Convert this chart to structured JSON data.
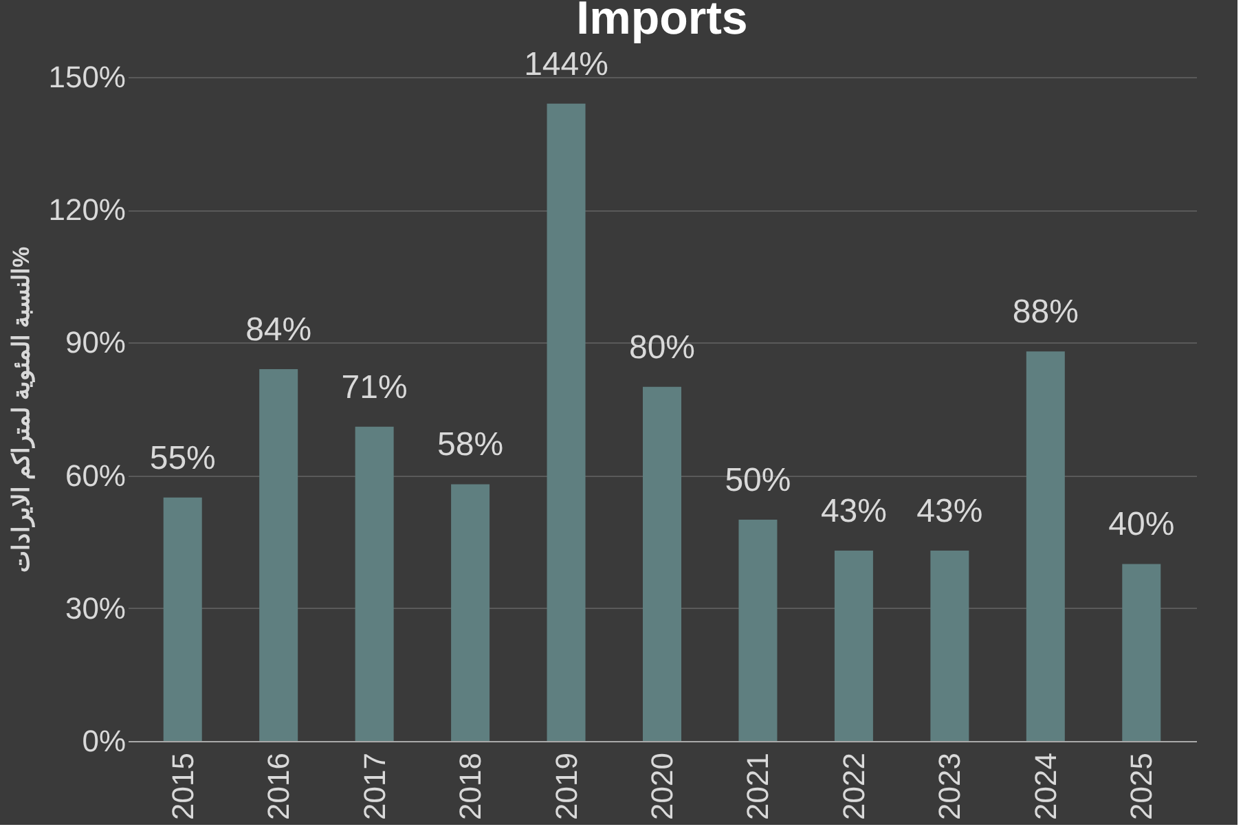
{
  "chart_data": {
    "type": "bar",
    "title": "Imports",
    "ylabel": "النسبة المئوية لمتراكم الايرادات%",
    "categories": [
      "2015",
      "2016",
      "2017",
      "2018",
      "2019",
      "2020",
      "2021",
      "2022",
      "2023",
      "2024",
      "2025"
    ],
    "values": [
      55,
      84,
      71,
      58,
      144,
      80,
      50,
      43,
      43,
      88,
      40
    ],
    "value_labels": [
      "55%",
      "84%",
      "71%",
      "58%",
      "144%",
      "80%",
      "50%",
      "43%",
      "43%",
      "88%",
      "40%"
    ],
    "color": "#5f7f80",
    "ylim": [
      0,
      150
    ],
    "yticks": [
      {
        "value": 0,
        "label": "0%"
      },
      {
        "value": 30,
        "label": "30%"
      },
      {
        "value": 60,
        "label": "60%"
      },
      {
        "value": 90,
        "label": "90%"
      },
      {
        "value": 120,
        "label": "120%"
      },
      {
        "value": 150,
        "label": "150%"
      }
    ],
    "grid": "y"
  }
}
